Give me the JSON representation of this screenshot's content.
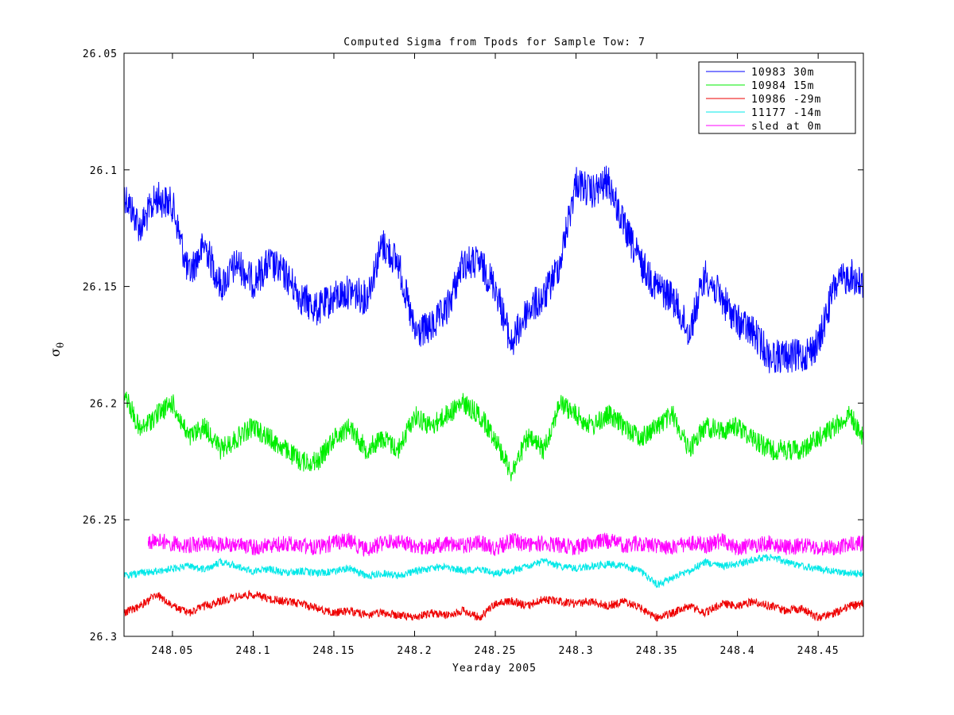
{
  "chart_data": {
    "type": "line",
    "title": "Computed Sigma from Tpods for Sample Tow: 7",
    "xlabel": "Yearday 2005",
    "ylabel_symbol": "σ",
    "ylabel_subscript": "θ",
    "xlim": [
      248.02,
      248.478
    ],
    "ylim": [
      26.05,
      26.3
    ],
    "y_reversed": true,
    "xticks": [
      248.05,
      248.1,
      248.15,
      248.2,
      248.25,
      248.3,
      248.35,
      248.4,
      248.45
    ],
    "xtick_labels": [
      "248.05",
      "248.1",
      "248.15",
      "248.2",
      "248.25",
      "248.3",
      "248.35",
      "248.4",
      "248.45"
    ],
    "yticks": [
      26.05,
      26.1,
      26.15,
      26.2,
      26.25,
      26.3
    ],
    "ytick_labels": [
      "26.05",
      "26.1",
      "26.15",
      "26.2",
      "26.25",
      "26.3"
    ],
    "grid": false,
    "legend_position": "top-right",
    "series": [
      {
        "name": "10983 30m",
        "color": "#0000ff",
        "x": [
          248.02,
          248.03,
          248.04,
          248.05,
          248.06,
          248.07,
          248.08,
          248.09,
          248.1,
          248.11,
          248.12,
          248.13,
          248.14,
          248.15,
          248.16,
          248.17,
          248.18,
          248.19,
          248.2,
          248.21,
          248.22,
          248.23,
          248.24,
          248.25,
          248.26,
          248.27,
          248.28,
          248.29,
          248.3,
          248.31,
          248.32,
          248.33,
          248.34,
          248.35,
          248.36,
          248.37,
          248.38,
          248.39,
          248.4,
          248.41,
          248.42,
          248.43,
          248.44,
          248.45,
          248.46,
          248.47,
          248.478
        ],
        "values": [
          26.11,
          26.125,
          26.112,
          26.115,
          26.145,
          26.132,
          26.15,
          26.14,
          26.148,
          26.14,
          26.145,
          26.155,
          26.16,
          26.155,
          26.152,
          26.155,
          26.132,
          26.14,
          26.17,
          26.168,
          26.16,
          26.14,
          26.14,
          26.15,
          26.175,
          26.16,
          26.155,
          26.14,
          26.105,
          26.11,
          26.105,
          26.125,
          26.14,
          26.15,
          26.155,
          26.17,
          26.145,
          26.155,
          26.165,
          26.17,
          26.18,
          26.18,
          26.18,
          26.175,
          26.15,
          26.145,
          26.15
        ]
      },
      {
        "name": "10984 15m",
        "color": "#00ee00",
        "x": [
          248.02,
          248.03,
          248.04,
          248.05,
          248.06,
          248.07,
          248.08,
          248.09,
          248.1,
          248.11,
          248.12,
          248.13,
          248.14,
          248.15,
          248.16,
          248.17,
          248.18,
          248.19,
          248.2,
          248.21,
          248.22,
          248.23,
          248.24,
          248.25,
          248.26,
          248.27,
          248.28,
          248.29,
          248.3,
          248.31,
          248.32,
          248.33,
          248.34,
          248.35,
          248.36,
          248.37,
          248.38,
          248.39,
          248.4,
          248.41,
          248.42,
          248.43,
          248.44,
          248.45,
          248.46,
          248.47,
          248.478
        ],
        "values": [
          26.195,
          26.212,
          26.205,
          26.2,
          26.215,
          26.21,
          26.22,
          26.215,
          26.21,
          26.215,
          26.22,
          26.225,
          26.225,
          26.215,
          26.21,
          26.22,
          26.215,
          26.22,
          26.205,
          26.21,
          26.205,
          26.2,
          26.205,
          26.215,
          26.23,
          26.215,
          26.22,
          26.2,
          26.205,
          26.21,
          26.205,
          26.21,
          26.215,
          26.21,
          26.205,
          26.22,
          26.21,
          26.212,
          26.21,
          26.215,
          26.22,
          26.22,
          26.22,
          26.215,
          26.21,
          26.205,
          26.215
        ]
      },
      {
        "name": "10986 -29m",
        "color": "#ee0000",
        "x": [
          248.02,
          248.03,
          248.04,
          248.05,
          248.06,
          248.07,
          248.08,
          248.09,
          248.1,
          248.11,
          248.12,
          248.13,
          248.14,
          248.15,
          248.16,
          248.17,
          248.18,
          248.19,
          248.2,
          248.21,
          248.22,
          248.23,
          248.24,
          248.25,
          248.26,
          248.27,
          248.28,
          248.29,
          248.3,
          248.31,
          248.32,
          248.33,
          248.34,
          248.35,
          248.36,
          248.37,
          248.38,
          248.39,
          248.4,
          248.41,
          248.42,
          248.43,
          248.44,
          248.45,
          248.46,
          248.47,
          248.478
        ],
        "values": [
          26.29,
          26.287,
          26.282,
          26.287,
          26.29,
          26.287,
          26.285,
          26.283,
          26.282,
          26.284,
          26.285,
          26.286,
          26.288,
          26.29,
          26.289,
          26.291,
          26.29,
          26.291,
          26.292,
          26.29,
          26.291,
          26.289,
          26.292,
          26.286,
          26.285,
          26.287,
          26.284,
          26.285,
          26.286,
          26.285,
          26.287,
          26.285,
          26.288,
          26.292,
          26.29,
          26.287,
          26.29,
          26.286,
          26.287,
          26.285,
          26.287,
          26.289,
          26.288,
          26.292,
          26.29,
          26.287,
          26.286
        ]
      },
      {
        "name": "11177 -14m",
        "color": "#00e8e8",
        "x": [
          248.02,
          248.03,
          248.04,
          248.05,
          248.06,
          248.07,
          248.08,
          248.09,
          248.1,
          248.11,
          248.12,
          248.13,
          248.14,
          248.15,
          248.16,
          248.17,
          248.18,
          248.19,
          248.2,
          248.21,
          248.22,
          248.23,
          248.24,
          248.25,
          248.26,
          248.27,
          248.28,
          248.29,
          248.3,
          248.31,
          248.32,
          248.33,
          248.34,
          248.35,
          248.36,
          248.37,
          248.38,
          248.39,
          248.4,
          248.41,
          248.42,
          248.43,
          248.44,
          248.45,
          248.46,
          248.47,
          248.478
        ],
        "values": [
          26.274,
          26.273,
          26.272,
          26.271,
          26.27,
          26.271,
          26.268,
          26.27,
          26.272,
          26.271,
          26.273,
          26.272,
          26.273,
          26.272,
          26.271,
          26.274,
          26.273,
          26.274,
          26.272,
          26.271,
          26.27,
          26.272,
          26.271,
          26.273,
          26.272,
          26.27,
          26.268,
          26.27,
          26.271,
          26.27,
          26.269,
          26.27,
          26.272,
          26.278,
          26.275,
          26.272,
          26.268,
          26.27,
          26.269,
          26.267,
          26.266,
          26.268,
          26.27,
          26.271,
          26.272,
          26.273,
          26.273
        ]
      },
      {
        "name": "sled at 0m",
        "color": "#ff00ff",
        "x": [
          248.035,
          248.04,
          248.05,
          248.06,
          248.07,
          248.08,
          248.09,
          248.1,
          248.11,
          248.12,
          248.13,
          248.14,
          248.15,
          248.16,
          248.17,
          248.18,
          248.19,
          248.2,
          248.21,
          248.22,
          248.23,
          248.24,
          248.25,
          248.26,
          248.27,
          248.28,
          248.29,
          248.3,
          248.31,
          248.32,
          248.33,
          248.34,
          248.35,
          248.36,
          248.37,
          248.38,
          248.39,
          248.4,
          248.41,
          248.42,
          248.43,
          248.44,
          248.45,
          248.46,
          248.47,
          248.478
        ],
        "values": [
          26.26,
          26.259,
          26.26,
          26.261,
          26.26,
          26.261,
          26.26,
          26.262,
          26.261,
          26.26,
          26.261,
          26.262,
          26.26,
          26.259,
          26.263,
          26.26,
          26.259,
          26.261,
          26.262,
          26.26,
          26.261,
          26.26,
          26.262,
          26.259,
          26.261,
          26.26,
          26.261,
          26.262,
          26.26,
          26.259,
          26.261,
          26.26,
          26.261,
          26.262,
          26.26,
          26.261,
          26.259,
          26.262,
          26.261,
          26.26,
          26.262,
          26.261,
          26.262,
          26.262,
          26.261,
          26.26
        ]
      }
    ]
  }
}
